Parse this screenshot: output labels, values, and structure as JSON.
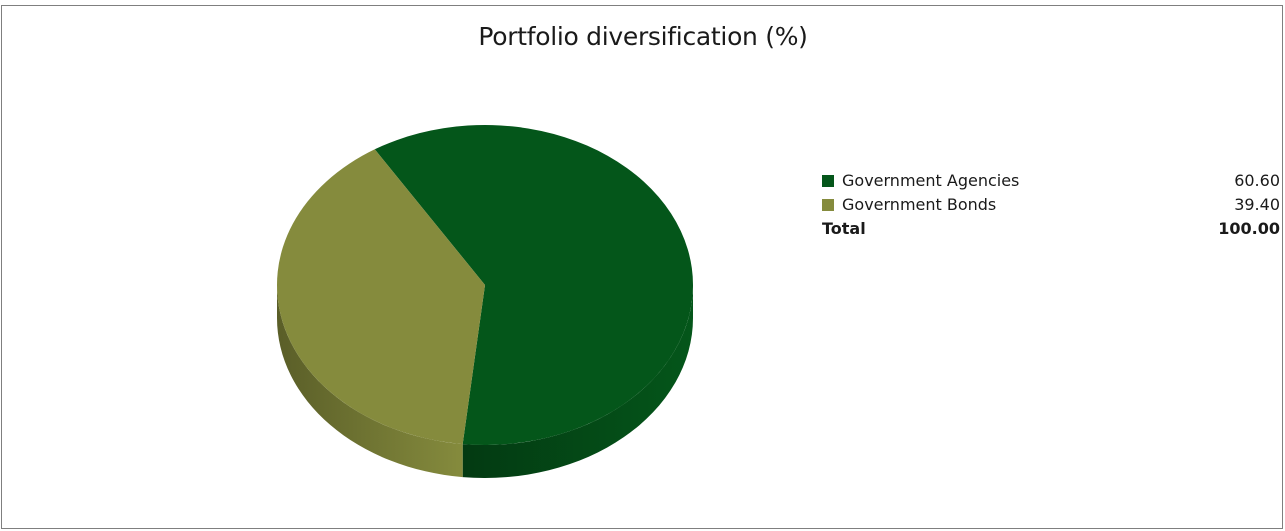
{
  "chart_data": {
    "type": "pie",
    "title": "Portfolio diversification (%)",
    "categories": [
      "Government Agencies",
      "Government Bonds"
    ],
    "values": [
      60.6,
      39.4
    ],
    "series": [
      {
        "name": "Government Agencies",
        "value": 60.6,
        "value_label": "60.60",
        "color": "#04561a",
        "side_color": "#033a12"
      },
      {
        "name": "Government Bonds",
        "value": 39.4,
        "value_label": "39.40",
        "color": "#858b3d",
        "side_color": "#5a5e28"
      }
    ],
    "legend_position": "right",
    "total_label": "Total",
    "total_value": "100.00",
    "style": "3d"
  }
}
